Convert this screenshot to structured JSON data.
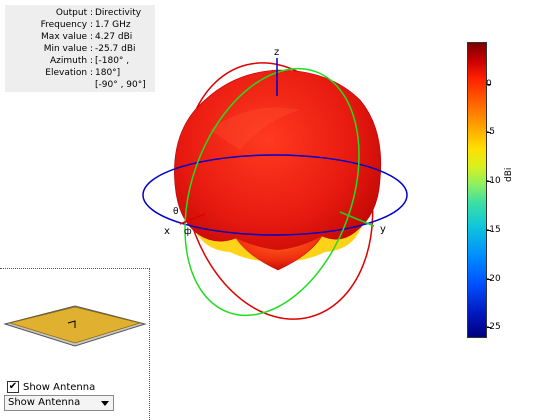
{
  "info": {
    "output_label": "Output :",
    "output_value": "Directivity",
    "frequency_label": "Frequency :",
    "frequency_value": "1.7 GHz",
    "max_label": "Max value :",
    "max_value": "4.27 dBi",
    "min_label": "Min value :",
    "min_value": "-25.7 dBi",
    "azimuth_label": "Azimuth :",
    "azimuth_value": "[-180° ,",
    "elevation_label": "Elevation :",
    "elevation_value": "180°]",
    "elevation_range": "[-90° , 90°]"
  },
  "axes": {
    "z": "z",
    "x": "x",
    "y": "y",
    "theta": "θ",
    "phi": "ф"
  },
  "colorbar": {
    "ticks": [
      "0",
      "-5",
      "-10",
      "-15",
      "-20",
      "-25"
    ],
    "unit": "dBi",
    "max": 4.27,
    "min": -25.7
  },
  "controls": {
    "show_antenna_checkbox_label": "Show Antenna",
    "show_antenna_checked": true,
    "show_antenna_select_value": "Show Antenna"
  },
  "colors": {
    "pattern": "#e01b10",
    "azimuth_circle": "#0000cc",
    "elevation_red": "#dd0000",
    "elevation_green": "#22dd22",
    "patch": "#e0b030"
  }
}
